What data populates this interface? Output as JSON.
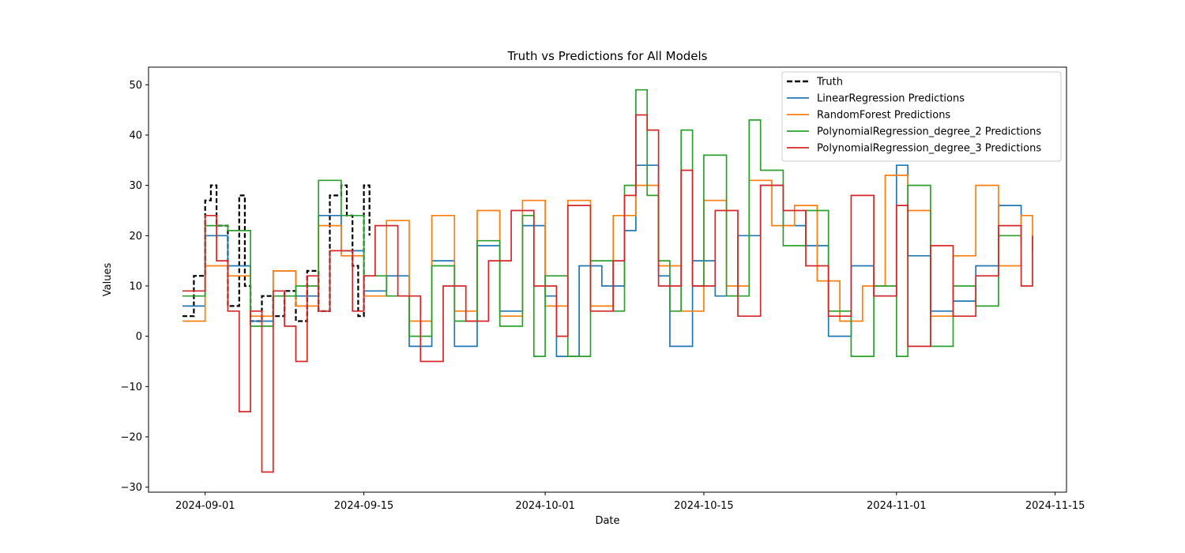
{
  "chart_data": {
    "type": "line",
    "title": "Truth vs Predictions for All Models",
    "xlabel": "Date",
    "ylabel": "Values",
    "x_axis": "date",
    "xlim": [
      "2024-08-27",
      "2024-11-16"
    ],
    "ylim": [
      -31,
      53.5
    ],
    "xticks": [
      "2024-09-01",
      "2024-09-15",
      "2024-10-01",
      "2024-10-15",
      "2024-11-01",
      "2024-11-15"
    ],
    "yticks": [
      -30,
      -20,
      -10,
      0,
      10,
      20,
      30,
      40,
      50
    ],
    "grid": false,
    "legend_position": "top-right",
    "series": [
      {
        "name": "Truth",
        "color": "#000000",
        "style": "dashed",
        "points": [
          [
            "2024-08-30",
            4
          ],
          [
            "2024-08-31",
            12
          ],
          [
            "2024-09-01",
            27
          ],
          [
            "2024-09-01 12:00",
            30
          ],
          [
            "2024-09-02",
            22
          ],
          [
            "2024-09-03",
            6
          ],
          [
            "2024-09-04",
            28
          ],
          [
            "2024-09-04 12:00",
            10
          ],
          [
            "2024-09-05",
            3
          ],
          [
            "2024-09-06",
            8
          ],
          [
            "2024-09-07",
            4
          ],
          [
            "2024-09-08",
            9
          ],
          [
            "2024-09-09",
            3
          ],
          [
            "2024-09-10",
            13
          ],
          [
            "2024-09-11",
            5
          ],
          [
            "2024-09-12",
            28
          ],
          [
            "2024-09-13",
            30
          ],
          [
            "2024-09-13 12:00",
            24
          ],
          [
            "2024-09-14",
            14
          ],
          [
            "2024-09-14 12:00",
            4
          ],
          [
            "2024-09-15",
            30
          ],
          [
            "2024-09-15 12:00",
            20
          ]
        ]
      },
      {
        "name": "LinearRegression Predictions",
        "color": "#1f77b4",
        "style": "solid",
        "points": [
          [
            "2024-08-30",
            6
          ],
          [
            "2024-09-01",
            20
          ],
          [
            "2024-09-03",
            14
          ],
          [
            "2024-09-05",
            3
          ],
          [
            "2024-09-07",
            13
          ],
          [
            "2024-09-09",
            8
          ],
          [
            "2024-09-11",
            24
          ],
          [
            "2024-09-13",
            17
          ],
          [
            "2024-09-15",
            9
          ],
          [
            "2024-09-17",
            12
          ],
          [
            "2024-09-19",
            -2
          ],
          [
            "2024-09-21",
            15
          ],
          [
            "2024-09-23",
            -2
          ],
          [
            "2024-09-25",
            18
          ],
          [
            "2024-09-27",
            5
          ],
          [
            "2024-09-29",
            22
          ],
          [
            "2024-10-01",
            8
          ],
          [
            "2024-10-02",
            -4
          ],
          [
            "2024-10-04",
            14
          ],
          [
            "2024-10-06",
            10
          ],
          [
            "2024-10-08",
            21
          ],
          [
            "2024-10-09",
            34
          ],
          [
            "2024-10-11",
            12
          ],
          [
            "2024-10-12",
            -2
          ],
          [
            "2024-10-14",
            15
          ],
          [
            "2024-10-16",
            8
          ],
          [
            "2024-10-18",
            20
          ],
          [
            "2024-10-20",
            30
          ],
          [
            "2024-10-22",
            22
          ],
          [
            "2024-10-24",
            18
          ],
          [
            "2024-10-26",
            0
          ],
          [
            "2024-10-28",
            14
          ],
          [
            "2024-10-30",
            8
          ],
          [
            "2024-11-01",
            34
          ],
          [
            "2024-11-02",
            16
          ],
          [
            "2024-11-04",
            5
          ],
          [
            "2024-11-06",
            7
          ],
          [
            "2024-11-08",
            14
          ],
          [
            "2024-11-10",
            26
          ],
          [
            "2024-11-12",
            20
          ]
        ]
      },
      {
        "name": "RandomForest Predictions",
        "color": "#ff7f0e",
        "style": "solid",
        "points": [
          [
            "2024-08-30",
            3
          ],
          [
            "2024-09-01",
            14
          ],
          [
            "2024-09-03",
            12
          ],
          [
            "2024-09-05",
            4
          ],
          [
            "2024-09-07",
            13
          ],
          [
            "2024-09-09",
            6
          ],
          [
            "2024-09-11",
            22
          ],
          [
            "2024-09-13",
            16
          ],
          [
            "2024-09-15",
            8
          ],
          [
            "2024-09-17",
            23
          ],
          [
            "2024-09-19",
            3
          ],
          [
            "2024-09-21",
            24
          ],
          [
            "2024-09-23",
            5
          ],
          [
            "2024-09-25",
            25
          ],
          [
            "2024-09-27",
            4
          ],
          [
            "2024-09-29",
            27
          ],
          [
            "2024-10-01",
            6
          ],
          [
            "2024-10-03",
            27
          ],
          [
            "2024-10-05",
            6
          ],
          [
            "2024-10-07",
            24
          ],
          [
            "2024-10-09",
            30
          ],
          [
            "2024-10-11",
            14
          ],
          [
            "2024-10-13",
            5
          ],
          [
            "2024-10-15",
            27
          ],
          [
            "2024-10-17",
            10
          ],
          [
            "2024-10-19",
            31
          ],
          [
            "2024-10-21",
            22
          ],
          [
            "2024-10-23",
            26
          ],
          [
            "2024-10-25",
            11
          ],
          [
            "2024-10-27",
            3
          ],
          [
            "2024-10-29",
            10
          ],
          [
            "2024-10-31",
            32
          ],
          [
            "2024-11-02",
            25
          ],
          [
            "2024-11-04",
            4
          ],
          [
            "2024-11-06",
            16
          ],
          [
            "2024-11-08",
            30
          ],
          [
            "2024-11-10",
            14
          ],
          [
            "2024-11-12",
            24
          ],
          [
            "2024-11-13",
            17
          ]
        ]
      },
      {
        "name": "PolynomialRegression_degree_2 Predictions",
        "color": "#2ca02c",
        "style": "solid",
        "points": [
          [
            "2024-08-30",
            8
          ],
          [
            "2024-09-01",
            22
          ],
          [
            "2024-09-03",
            21
          ],
          [
            "2024-09-05",
            2
          ],
          [
            "2024-09-07",
            8
          ],
          [
            "2024-09-09",
            10
          ],
          [
            "2024-09-11",
            31
          ],
          [
            "2024-09-13",
            24
          ],
          [
            "2024-09-15",
            12
          ],
          [
            "2024-09-17",
            8
          ],
          [
            "2024-09-19",
            0
          ],
          [
            "2024-09-21",
            14
          ],
          [
            "2024-09-23",
            3
          ],
          [
            "2024-09-25",
            19
          ],
          [
            "2024-09-27",
            2
          ],
          [
            "2024-09-29",
            24
          ],
          [
            "2024-09-30",
            -4
          ],
          [
            "2024-10-01",
            12
          ],
          [
            "2024-10-03",
            -4
          ],
          [
            "2024-10-05",
            15
          ],
          [
            "2024-10-07",
            5
          ],
          [
            "2024-10-08",
            30
          ],
          [
            "2024-10-09",
            49
          ],
          [
            "2024-10-10",
            28
          ],
          [
            "2024-10-11",
            15
          ],
          [
            "2024-10-12",
            5
          ],
          [
            "2024-10-13",
            41
          ],
          [
            "2024-10-14",
            10
          ],
          [
            "2024-10-15",
            36
          ],
          [
            "2024-10-17",
            8
          ],
          [
            "2024-10-19",
            43
          ],
          [
            "2024-10-20",
            33
          ],
          [
            "2024-10-22",
            18
          ],
          [
            "2024-10-24",
            25
          ],
          [
            "2024-10-26",
            5
          ],
          [
            "2024-10-28",
            -4
          ],
          [
            "2024-10-30",
            10
          ],
          [
            "2024-11-01",
            -4
          ],
          [
            "2024-11-02",
            30
          ],
          [
            "2024-11-04",
            -2
          ],
          [
            "2024-11-06",
            10
          ],
          [
            "2024-11-08",
            6
          ],
          [
            "2024-11-10",
            20
          ],
          [
            "2024-11-12",
            18
          ]
        ]
      },
      {
        "name": "PolynomialRegression_degree_3 Predictions",
        "color": "#d62728",
        "style": "solid",
        "points": [
          [
            "2024-08-30",
            9
          ],
          [
            "2024-09-01",
            24
          ],
          [
            "2024-09-02",
            15
          ],
          [
            "2024-09-03",
            5
          ],
          [
            "2024-09-04",
            -15
          ],
          [
            "2024-09-05",
            5
          ],
          [
            "2024-09-06",
            -27
          ],
          [
            "2024-09-07",
            9
          ],
          [
            "2024-09-08",
            2
          ],
          [
            "2024-09-09",
            -5
          ],
          [
            "2024-09-10",
            12
          ],
          [
            "2024-09-11",
            5
          ],
          [
            "2024-09-12",
            17
          ],
          [
            "2024-09-14",
            5
          ],
          [
            "2024-09-15",
            12
          ],
          [
            "2024-09-16",
            22
          ],
          [
            "2024-09-18",
            8
          ],
          [
            "2024-09-20",
            -5
          ],
          [
            "2024-09-22",
            10
          ],
          [
            "2024-09-24",
            3
          ],
          [
            "2024-09-26",
            15
          ],
          [
            "2024-09-28",
            25
          ],
          [
            "2024-09-30",
            10
          ],
          [
            "2024-10-02",
            0
          ],
          [
            "2024-10-03",
            26
          ],
          [
            "2024-10-05",
            5
          ],
          [
            "2024-10-07",
            15
          ],
          [
            "2024-10-08",
            28
          ],
          [
            "2024-10-09",
            44
          ],
          [
            "2024-10-10",
            41
          ],
          [
            "2024-10-11",
            10
          ],
          [
            "2024-10-13",
            33
          ],
          [
            "2024-10-14",
            10
          ],
          [
            "2024-10-16",
            25
          ],
          [
            "2024-10-18",
            4
          ],
          [
            "2024-10-20",
            30
          ],
          [
            "2024-10-22",
            25
          ],
          [
            "2024-10-24",
            14
          ],
          [
            "2024-10-26",
            4
          ],
          [
            "2024-10-28",
            28
          ],
          [
            "2024-10-30",
            8
          ],
          [
            "2024-11-01",
            26
          ],
          [
            "2024-11-02",
            -2
          ],
          [
            "2024-11-04",
            18
          ],
          [
            "2024-11-06",
            4
          ],
          [
            "2024-11-08",
            12
          ],
          [
            "2024-11-10",
            22
          ],
          [
            "2024-11-12",
            10
          ],
          [
            "2024-11-13",
            20
          ]
        ]
      }
    ]
  }
}
